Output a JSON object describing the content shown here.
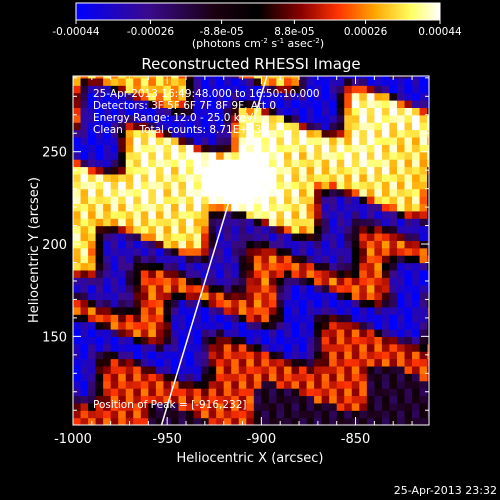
{
  "colorbar": {
    "ticks": [
      "-0.00044",
      "-0.00026",
      "-8.8e-05",
      "8.8e-05",
      "0.00026",
      "0.00044"
    ],
    "tick_values": [
      -0.00044,
      -0.00026,
      -8.8e-05,
      8.8e-05,
      0.00026,
      0.00044
    ],
    "range": [
      -0.00044,
      0.00044
    ],
    "units_prefix": "(photons cm",
    "units_exp1": "-2",
    "units_mid": " s",
    "units_exp2": "-1",
    "units_mid2": " asec",
    "units_exp3": "-2",
    "units_suffix": ")",
    "colors": [
      "#0000ff",
      "#3a0a8c",
      "#1a0010",
      "#000000",
      "#8b0000",
      "#ff3300",
      "#ffa500",
      "#ffff60",
      "#ffffff"
    ]
  },
  "annotations": {
    "time": "25-Apr-2013 16:49:48.000 to 16:50:10.000",
    "detectors": "Detectors: 3F 5F 6F 7F 8F 9F, Att 0",
    "energy": "Energy Range: 12.0 - 25.0 keV",
    "clean": "Clean     Total counts: 8.71E+03",
    "peak": "Position of Peak = [-916,232]"
  },
  "footer_timestamp": "25-Apr-2013 23:32",
  "chart_data": {
    "type": "heatmap",
    "title": "Reconstructed RHESSI Image",
    "xlabel": "Heliocentric X (arcsec)",
    "ylabel": "Heliocentric Y (arcsec)",
    "xlim": [
      -1000,
      -811
    ],
    "ylim": [
      102,
      291
    ],
    "xticks": [
      -1000,
      -950,
      -900,
      -850
    ],
    "xtick_labels": [
      "-1000",
      "-950",
      "-900",
      "-850"
    ],
    "yticks": [
      150,
      200,
      250
    ],
    "ytick_labels": [
      "150",
      "200",
      "250"
    ],
    "peak_position": [
      -916,
      232
    ],
    "limb_line": [
      [
        -953,
        102
      ],
      [
        -897,
        291
      ]
    ],
    "bands": [
      {
        "y_center": 286,
        "x_range": [
          -1000,
          -811
        ],
        "level": 0.85
      },
      {
        "y_center": 258,
        "x_range": [
          -1000,
          -811
        ],
        "level": 0.05
      },
      {
        "y_center": 234,
        "x_range": [
          -1000,
          -811
        ],
        "level": 0.95
      },
      {
        "y_center": 205,
        "x_range": [
          -1000,
          -811
        ],
        "level": 0.9
      },
      {
        "y_center": 178,
        "x_range": [
          -1000,
          -811
        ],
        "level": 0.1
      },
      {
        "y_center": 160,
        "x_range": [
          -1000,
          -811
        ],
        "level": 0.75
      },
      {
        "y_center": 135,
        "x_range": [
          -1000,
          -811
        ],
        "level": 0.05
      },
      {
        "y_center": 112,
        "x_range": [
          -1000,
          -811
        ],
        "level": 0.7
      }
    ]
  }
}
